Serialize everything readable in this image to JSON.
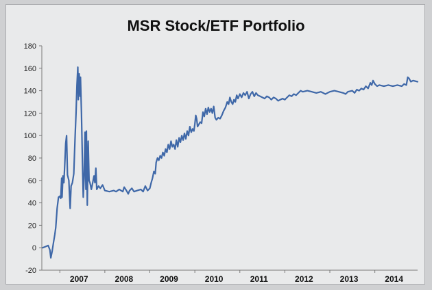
{
  "chart_data": {
    "type": "line",
    "title": "MSR Stock/ETF Portfolio",
    "xlabel": "",
    "ylabel": "",
    "ylim": [
      -20,
      180
    ],
    "yticks": [
      -20,
      0,
      20,
      40,
      60,
      80,
      100,
      120,
      140,
      160,
      180
    ],
    "xlim": [
      2006.6,
      2014.95
    ],
    "xticks": [
      {
        "label": "2007",
        "x": 2007.0
      },
      {
        "label": "2008",
        "x": 2008.0
      },
      {
        "label": "2009",
        "x": 2009.0
      },
      {
        "label": "2010",
        "x": 2010.0
      },
      {
        "label": "2011",
        "x": 2011.0
      },
      {
        "label": "2012",
        "x": 2012.0
      },
      {
        "label": "2013",
        "x": 2013.0
      },
      {
        "label": "2014",
        "x": 2014.0
      }
    ],
    "grid": false,
    "line_color": "#3f68a8",
    "series": [
      {
        "name": "",
        "points": [
          [
            2006.62,
            0
          ],
          [
            2006.68,
            1
          ],
          [
            2006.74,
            2
          ],
          [
            2006.78,
            -2
          ],
          [
            2006.8,
            -9
          ],
          [
            2006.83,
            -3
          ],
          [
            2006.86,
            5
          ],
          [
            2006.89,
            12
          ],
          [
            2006.91,
            18
          ],
          [
            2006.94,
            35
          ],
          [
            2006.97,
            45
          ],
          [
            2007.0,
            46
          ],
          [
            2007.02,
            44
          ],
          [
            2007.04,
            62
          ],
          [
            2007.05,
            45
          ],
          [
            2007.07,
            64
          ],
          [
            2007.09,
            58
          ],
          [
            2007.11,
            75
          ],
          [
            2007.13,
            93
          ],
          [
            2007.15,
            100
          ],
          [
            2007.17,
            65
          ],
          [
            2007.2,
            60
          ],
          [
            2007.23,
            35
          ],
          [
            2007.25,
            55
          ],
          [
            2007.28,
            58
          ],
          [
            2007.31,
            66
          ],
          [
            2007.34,
            100
          ],
          [
            2007.36,
            120
          ],
          [
            2007.38,
            145
          ],
          [
            2007.4,
            161
          ],
          [
            2007.41,
            132
          ],
          [
            2007.43,
            155
          ],
          [
            2007.45,
            135
          ],
          [
            2007.46,
            152
          ],
          [
            2007.48,
            120
          ],
          [
            2007.5,
            80
          ],
          [
            2007.52,
            45
          ],
          [
            2007.54,
            62
          ],
          [
            2007.56,
            103
          ],
          [
            2007.58,
            52
          ],
          [
            2007.59,
            104
          ],
          [
            2007.61,
            38
          ],
          [
            2007.63,
            95
          ],
          [
            2007.65,
            60
          ],
          [
            2007.67,
            58
          ],
          [
            2007.7,
            52
          ],
          [
            2007.73,
            58
          ],
          [
            2007.76,
            64
          ],
          [
            2007.78,
            58
          ],
          [
            2007.8,
            71
          ],
          [
            2007.82,
            52
          ],
          [
            2007.86,
            55
          ],
          [
            2007.9,
            53
          ],
          [
            2007.95,
            56
          ],
          [
            2008.0,
            51
          ],
          [
            2008.1,
            50
          ],
          [
            2008.2,
            51
          ],
          [
            2008.25,
            50
          ],
          [
            2008.32,
            52
          ],
          [
            2008.4,
            50
          ],
          [
            2008.43,
            54
          ],
          [
            2008.48,
            51
          ],
          [
            2008.52,
            48
          ],
          [
            2008.55,
            51
          ],
          [
            2008.6,
            53
          ],
          [
            2008.65,
            50
          ],
          [
            2008.72,
            51
          ],
          [
            2008.8,
            52
          ],
          [
            2008.85,
            50
          ],
          [
            2008.9,
            55
          ],
          [
            2008.95,
            51
          ],
          [
            2009.0,
            53
          ],
          [
            2009.03,
            58
          ],
          [
            2009.06,
            62
          ],
          [
            2009.09,
            68
          ],
          [
            2009.12,
            66
          ],
          [
            2009.14,
            76
          ],
          [
            2009.17,
            80
          ],
          [
            2009.2,
            78
          ],
          [
            2009.23,
            82
          ],
          [
            2009.26,
            80
          ],
          [
            2009.29,
            85
          ],
          [
            2009.32,
            82
          ],
          [
            2009.35,
            88
          ],
          [
            2009.38,
            85
          ],
          [
            2009.41,
            92
          ],
          [
            2009.44,
            88
          ],
          [
            2009.47,
            95
          ],
          [
            2009.5,
            90
          ],
          [
            2009.53,
            92
          ],
          [
            2009.56,
            88
          ],
          [
            2009.59,
            96
          ],
          [
            2009.62,
            90
          ],
          [
            2009.65,
            98
          ],
          [
            2009.68,
            94
          ],
          [
            2009.71,
            100
          ],
          [
            2009.74,
            96
          ],
          [
            2009.77,
            102
          ],
          [
            2009.8,
            97
          ],
          [
            2009.83,
            104
          ],
          [
            2009.86,
            100
          ],
          [
            2009.89,
            108
          ],
          [
            2009.92,
            103
          ],
          [
            2009.95,
            106
          ],
          [
            2009.98,
            104
          ],
          [
            2010.0,
            110
          ],
          [
            2010.02,
            118
          ],
          [
            2010.04,
            115
          ],
          [
            2010.06,
            108
          ],
          [
            2010.09,
            110
          ],
          [
            2010.12,
            112
          ],
          [
            2010.15,
            111
          ],
          [
            2010.18,
            121
          ],
          [
            2010.21,
            117
          ],
          [
            2010.24,
            124
          ],
          [
            2010.27,
            119
          ],
          [
            2010.3,
            125
          ],
          [
            2010.33,
            121
          ],
          [
            2010.36,
            124
          ],
          [
            2010.39,
            120
          ],
          [
            2010.42,
            126
          ],
          [
            2010.45,
            116
          ],
          [
            2010.48,
            114
          ],
          [
            2010.52,
            116
          ],
          [
            2010.56,
            115
          ],
          [
            2010.6,
            118
          ],
          [
            2010.64,
            122
          ],
          [
            2010.68,
            125
          ],
          [
            2010.72,
            130
          ],
          [
            2010.75,
            128
          ],
          [
            2010.78,
            134
          ],
          [
            2010.81,
            130
          ],
          [
            2010.84,
            128
          ],
          [
            2010.87,
            132
          ],
          [
            2010.9,
            130
          ],
          [
            2010.93,
            136
          ],
          [
            2010.96,
            133
          ],
          [
            2011.0,
            137
          ],
          [
            2011.04,
            134
          ],
          [
            2011.08,
            138
          ],
          [
            2011.12,
            136
          ],
          [
            2011.16,
            139
          ],
          [
            2011.2,
            133
          ],
          [
            2011.24,
            137
          ],
          [
            2011.28,
            139
          ],
          [
            2011.32,
            135
          ],
          [
            2011.36,
            138
          ],
          [
            2011.4,
            136
          ],
          [
            2011.45,
            135
          ],
          [
            2011.5,
            134
          ],
          [
            2011.55,
            133
          ],
          [
            2011.6,
            135
          ],
          [
            2011.65,
            134
          ],
          [
            2011.7,
            132
          ],
          [
            2011.75,
            134
          ],
          [
            2011.8,
            133
          ],
          [
            2011.85,
            131
          ],
          [
            2011.9,
            132
          ],
          [
            2011.95,
            133
          ],
          [
            2012.0,
            132
          ],
          [
            2012.05,
            134
          ],
          [
            2012.1,
            136
          ],
          [
            2012.15,
            135
          ],
          [
            2012.2,
            137
          ],
          [
            2012.25,
            136
          ],
          [
            2012.3,
            138
          ],
          [
            2012.35,
            140
          ],
          [
            2012.4,
            139
          ],
          [
            2012.5,
            140
          ],
          [
            2012.6,
            139
          ],
          [
            2012.7,
            138
          ],
          [
            2012.8,
            139
          ],
          [
            2012.9,
            137
          ],
          [
            2013.0,
            139
          ],
          [
            2013.1,
            140
          ],
          [
            2013.2,
            139
          ],
          [
            2013.3,
            138
          ],
          [
            2013.35,
            137
          ],
          [
            2013.4,
            139
          ],
          [
            2013.5,
            140
          ],
          [
            2013.55,
            138
          ],
          [
            2013.6,
            141
          ],
          [
            2013.65,
            140
          ],
          [
            2013.7,
            142
          ],
          [
            2013.75,
            141
          ],
          [
            2013.8,
            144
          ],
          [
            2013.85,
            142
          ],
          [
            2013.9,
            147
          ],
          [
            2013.93,
            145
          ],
          [
            2013.96,
            149
          ],
          [
            2014.0,
            146
          ],
          [
            2014.05,
            144
          ],
          [
            2014.1,
            145
          ],
          [
            2014.2,
            144
          ],
          [
            2014.3,
            145
          ],
          [
            2014.4,
            144
          ],
          [
            2014.5,
            145
          ],
          [
            2014.6,
            144
          ],
          [
            2014.65,
            146
          ],
          [
            2014.7,
            145
          ],
          [
            2014.73,
            152
          ],
          [
            2014.76,
            151
          ],
          [
            2014.8,
            148
          ],
          [
            2014.85,
            149
          ],
          [
            2014.95,
            148
          ]
        ]
      }
    ]
  }
}
